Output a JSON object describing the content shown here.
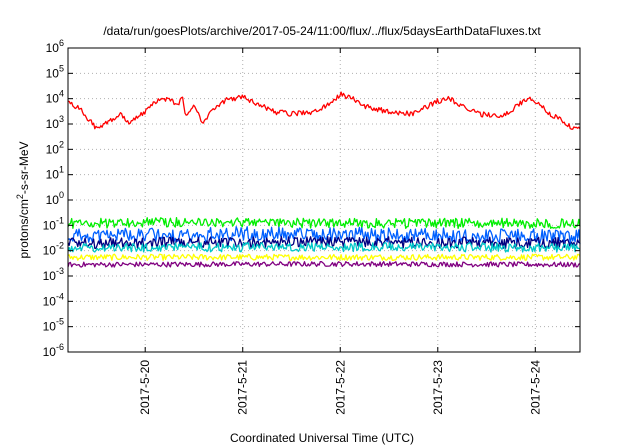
{
  "chart_data": {
    "type": "line",
    "title": "/data/run/goesPlots/archive/2017-05-24/11:00/flux/../flux/5daysEarthDataFluxes.txt",
    "xlabel": "Coordinated Universal Time (UTC)",
    "ylabel": "protons/cm²-s-sr-MeV",
    "ylabel_parts": {
      "base": "protons/cm",
      "sup": "2",
      "rest": "-s-sr-MeV"
    },
    "x_type": "date",
    "xlim": [
      "2017-05-19T05:00:00",
      "2017-05-24T11:00:00"
    ],
    "x_ticks": [
      "2017-5-20",
      "2017-5-21",
      "2017-5-22",
      "2017-5-23",
      "2017-5-24"
    ],
    "x_tick_dates": [
      "2017-05-20",
      "2017-05-21",
      "2017-05-22",
      "2017-05-23",
      "2017-05-24"
    ],
    "y_scale": "log",
    "ylim": [
      1e-06,
      1000000.0
    ],
    "y_ticks": [
      {
        "value": 1e-06,
        "base": "10",
        "exp": "-6"
      },
      {
        "value": 1e-05,
        "base": "10",
        "exp": "-5"
      },
      {
        "value": 0.0001,
        "base": "10",
        "exp": "-4"
      },
      {
        "value": 0.001,
        "base": "10",
        "exp": "-3"
      },
      {
        "value": 0.01,
        "base": "10",
        "exp": "-2"
      },
      {
        "value": 0.1,
        "base": "10",
        "exp": "-1"
      },
      {
        "value": 1,
        "base": "10",
        "exp": "0"
      },
      {
        "value": 10,
        "base": "10",
        "exp": "1"
      },
      {
        "value": 100,
        "base": "10",
        "exp": "2"
      },
      {
        "value": 1000,
        "base": "10",
        "exp": "3"
      },
      {
        "value": 10000,
        "base": "10",
        "exp": "4"
      },
      {
        "value": 100000,
        "base": "10",
        "exp": "5"
      },
      {
        "value": 1000000,
        "base": "10",
        "exp": "6"
      }
    ],
    "grid": true,
    "legend": "none",
    "series": [
      {
        "color": "#ff0000",
        "noise": 0.1,
        "points": [
          [
            "2017-05-19T05:00",
            7000
          ],
          [
            "2017-05-19T08:00",
            4000
          ],
          [
            "2017-05-19T10:00",
            1500
          ],
          [
            "2017-05-19T12:00",
            700
          ],
          [
            "2017-05-19T14:00",
            1000
          ],
          [
            "2017-05-19T18:00",
            2500
          ],
          [
            "2017-05-19T20:00",
            1200
          ],
          [
            "2017-05-20T00:00",
            3000
          ],
          [
            "2017-05-20T03:00",
            9000
          ],
          [
            "2017-05-20T06:00",
            10000
          ],
          [
            "2017-05-20T08:00",
            5000
          ],
          [
            "2017-05-20T09:00",
            15000
          ],
          [
            "2017-05-20T10:00",
            2000
          ],
          [
            "2017-05-20T12:00",
            6000
          ],
          [
            "2017-05-20T14:00",
            1000
          ],
          [
            "2017-05-20T16:00",
            3000
          ],
          [
            "2017-05-20T20:00",
            9000
          ],
          [
            "2017-05-21T00:00",
            12000
          ],
          [
            "2017-05-21T04:00",
            6000
          ],
          [
            "2017-05-21T08:00",
            3000
          ],
          [
            "2017-05-21T12:00",
            2500
          ],
          [
            "2017-05-21T18:00",
            3000
          ],
          [
            "2017-05-21T22:00",
            8000
          ],
          [
            "2017-05-22T00:00",
            15000
          ],
          [
            "2017-05-22T03:00",
            10000
          ],
          [
            "2017-05-22T06:00",
            5000
          ],
          [
            "2017-05-22T12:00",
            3000
          ],
          [
            "2017-05-22T18:00",
            2500
          ],
          [
            "2017-05-23T00:00",
            8000
          ],
          [
            "2017-05-23T03:00",
            10000
          ],
          [
            "2017-05-23T06:00",
            5000
          ],
          [
            "2017-05-23T10:00",
            2500
          ],
          [
            "2017-05-23T16:00",
            2000
          ],
          [
            "2017-05-23T20:00",
            6000
          ],
          [
            "2017-05-23T22:00",
            10000
          ],
          [
            "2017-05-24T00:00",
            8000
          ],
          [
            "2017-05-24T03:00",
            3000
          ],
          [
            "2017-05-24T06:00",
            1500
          ],
          [
            "2017-05-24T09:00",
            700
          ],
          [
            "2017-05-24T11:00",
            600
          ]
        ]
      },
      {
        "color": "#00ee00",
        "noise": 0.2,
        "points": [
          [
            "2017-05-19T05:00",
            0.12
          ],
          [
            "2017-05-20T12:00",
            0.13
          ],
          [
            "2017-05-22T00:00",
            0.12
          ],
          [
            "2017-05-24T11:00",
            0.12
          ]
        ]
      },
      {
        "color": "#0060ff",
        "noise": 0.3,
        "points": [
          [
            "2017-05-19T05:00",
            0.04
          ],
          [
            "2017-05-21T00:00",
            0.045
          ],
          [
            "2017-05-23T00:00",
            0.04
          ],
          [
            "2017-05-24T11:00",
            0.035
          ]
        ]
      },
      {
        "color": "#000080",
        "noise": 0.22,
        "points": [
          [
            "2017-05-19T05:00",
            0.02
          ],
          [
            "2017-05-21T12:00",
            0.022
          ],
          [
            "2017-05-24T11:00",
            0.02
          ]
        ]
      },
      {
        "color": "#00c8c8",
        "noise": 0.18,
        "points": [
          [
            "2017-05-19T05:00",
            0.013
          ],
          [
            "2017-05-22T00:00",
            0.014
          ],
          [
            "2017-05-24T11:00",
            0.013
          ]
        ]
      },
      {
        "color": "#ffff00",
        "noise": 0.12,
        "points": [
          [
            "2017-05-19T05:00",
            0.0055
          ],
          [
            "2017-05-22T00:00",
            0.0055
          ],
          [
            "2017-05-24T11:00",
            0.0055
          ]
        ]
      },
      {
        "color": "#800080",
        "noise": 0.1,
        "points": [
          [
            "2017-05-19T05:00",
            0.0028
          ],
          [
            "2017-05-22T00:00",
            0.003
          ],
          [
            "2017-05-24T11:00",
            0.0028
          ]
        ]
      }
    ]
  }
}
